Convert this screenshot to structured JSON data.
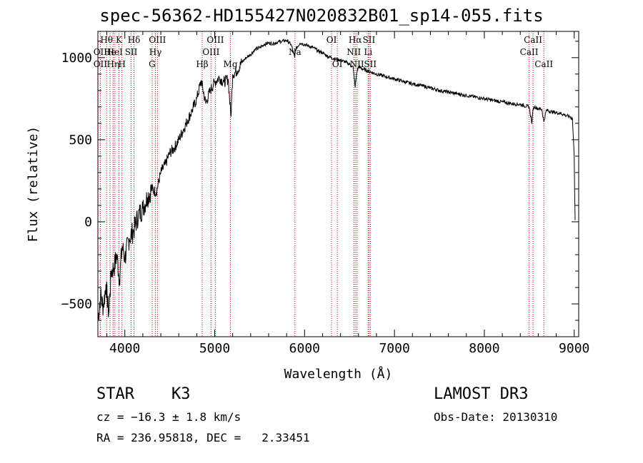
{
  "title": "spec-56362-HD155427N020832B01_sp14-055.fits",
  "info": {
    "object_class": "STAR",
    "subclass": "K3",
    "survey": "LAMOST DR3",
    "cz": "cz = −16.3 ± 1.8 km/s",
    "obs_date": "Obs-Date: 20130310",
    "coords": "RA = 236.95818, DEC =   2.33451"
  },
  "chart_data": {
    "type": "line",
    "title": "spec-56362-HD155427N020832B01_sp14-055.fits",
    "xlabel": "Wavelength (Å)",
    "ylabel": "Flux (relative)",
    "xlim": [
      3700,
      9050
    ],
    "ylim": [
      -700,
      1160
    ],
    "xticks": [
      4000,
      5000,
      6000,
      7000,
      8000,
      9000
    ],
    "yticks": [
      -500,
      0,
      500,
      1000
    ],
    "xtick_labels": [
      "4000",
      "5000",
      "6000",
      "7000",
      "8000",
      "9000"
    ],
    "ytick_labels": [
      "−500",
      "0",
      "500",
      "1000"
    ],
    "series": [
      {
        "name": "flux",
        "x": [
          3700,
          3730,
          3760,
          3790,
          3820,
          3850,
          3880,
          3910,
          3940,
          3970,
          4000,
          4050,
          4100,
          4150,
          4200,
          4250,
          4300,
          4350,
          4400,
          4450,
          4500,
          4550,
          4600,
          4650,
          4700,
          4750,
          4800,
          4850,
          4900,
          4950,
          5000,
          5050,
          5100,
          5150,
          5180,
          5200,
          5250,
          5300,
          5350,
          5400,
          5450,
          5500,
          5550,
          5600,
          5650,
          5700,
          5750,
          5800,
          5850,
          5890,
          5900,
          5950,
          6000,
          6050,
          6100,
          6150,
          6200,
          6250,
          6300,
          6350,
          6400,
          6450,
          6500,
          6540,
          6563,
          6580,
          6600,
          6650,
          6700,
          6750,
          6800,
          6900,
          7000,
          7100,
          7200,
          7300,
          7400,
          7500,
          7600,
          7700,
          7800,
          7900,
          8000,
          8100,
          8200,
          8300,
          8400,
          8498,
          8530,
          8542,
          8560,
          8600,
          8640,
          8662,
          8690,
          8750,
          8800,
          8850,
          8900,
          8950,
          8980,
          9000,
          9010
        ],
        "values": [
          -600,
          -450,
          -520,
          -380,
          -560,
          -300,
          -280,
          -200,
          -350,
          -150,
          -220,
          -100,
          -50,
          40,
          80,
          150,
          200,
          180,
          300,
          350,
          420,
          450,
          500,
          560,
          620,
          680,
          750,
          860,
          720,
          800,
          850,
          880,
          850,
          870,
          640,
          900,
          920,
          970,
          1000,
          1020,
          1050,
          1060,
          1080,
          1090,
          1085,
          1095,
          1100,
          1105,
          1080,
          1000,
          1050,
          1090,
          1080,
          1070,
          1060,
          1040,
          1030,
          1010,
          1000,
          990,
          985,
          975,
          960,
          940,
          820,
          910,
          945,
          930,
          920,
          910,
          900,
          885,
          870,
          855,
          840,
          830,
          815,
          800,
          790,
          780,
          770,
          760,
          750,
          740,
          730,
          720,
          715,
          700,
          600,
          690,
          700,
          690,
          685,
          610,
          680,
          670,
          665,
          660,
          650,
          640,
          630,
          400,
          10
        ]
      }
    ],
    "lines": [
      {
        "wl": 3797,
        "label": "Hθ",
        "row": 0
      },
      {
        "wl": 3727,
        "label": "OII",
        "row": 1
      },
      {
        "wl": 3727,
        "label": "OII",
        "row": 2
      },
      {
        "wl": 3835,
        "label": "He",
        "row": 1
      },
      {
        "wl": 3870,
        "label": "Hη",
        "row": 2
      },
      {
        "wl": 3889,
        "label": "HeI",
        "row": 1
      },
      {
        "wl": 3934,
        "label": "K",
        "row": 0
      },
      {
        "wl": 3968,
        "label": "H",
        "row": 2
      },
      {
        "wl": 4070,
        "label": "SII",
        "row": 1
      },
      {
        "wl": 4102,
        "label": "Hδ",
        "row": 0
      },
      {
        "wl": 4304,
        "label": "G",
        "row": 2
      },
      {
        "wl": 4340,
        "label": "Hγ",
        "row": 1
      },
      {
        "wl": 4363,
        "label": "OIII",
        "row": 0
      },
      {
        "wl": 4861,
        "label": "Hβ",
        "row": 2
      },
      {
        "wl": 4959,
        "label": "OIII",
        "row": 1
      },
      {
        "wl": 5007,
        "label": "OIII",
        "row": 0
      },
      {
        "wl": 5175,
        "label": "Mg",
        "row": 2
      },
      {
        "wl": 5893,
        "label": "Na",
        "row": 1
      },
      {
        "wl": 6300,
        "label": "OI",
        "row": 0
      },
      {
        "wl": 6364,
        "label": "OI",
        "row": 2
      },
      {
        "wl": 6548,
        "label": "NII",
        "row": 1
      },
      {
        "wl": 6563,
        "label": "Hα",
        "row": 0
      },
      {
        "wl": 6583,
        "label": "NII",
        "row": 2
      },
      {
        "wl": 6707,
        "label": "Li",
        "row": 1
      },
      {
        "wl": 6716,
        "label": "SII",
        "row": 0
      },
      {
        "wl": 6731,
        "label": "SII",
        "row": 2
      },
      {
        "wl": 8498,
        "label": "CaII",
        "row": 1
      },
      {
        "wl": 8542,
        "label": "CaII",
        "row": 0
      },
      {
        "wl": 8662,
        "label": "CaII",
        "row": 2
      }
    ]
  }
}
